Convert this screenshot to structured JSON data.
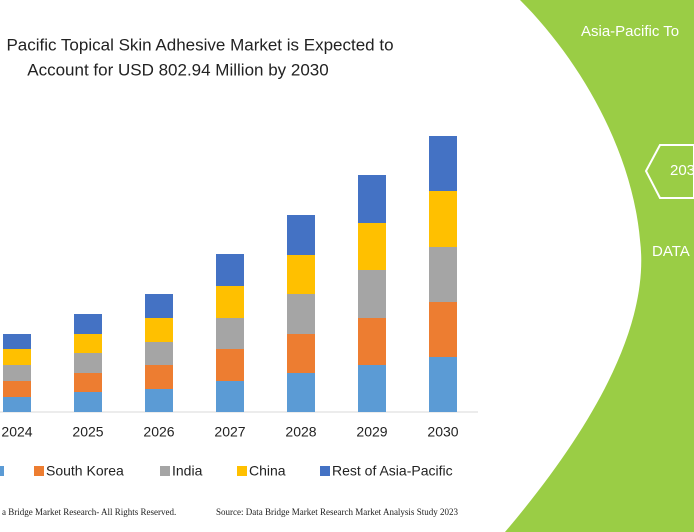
{
  "chart_data": {
    "type": "stacked-bar",
    "title_lines": [
      "Pacific Topical Skin Adhesive Market is Expected to",
      "Account for USD 802.94 Million by 2030"
    ],
    "categories": [
      "2024",
      "2025",
      "2026",
      "2027",
      "2028",
      "2029",
      "2030"
    ],
    "series": [
      {
        "color": "#5b9bd5",
        "values": [
          15,
          20,
          23,
          31,
          39,
          47,
          55
        ]
      },
      {
        "name": "South Korea",
        "color": "#ed7d31",
        "values": [
          16,
          19,
          24,
          32,
          39,
          47,
          55
        ]
      },
      {
        "name": "India",
        "color": "#a5a5a5",
        "values": [
          16,
          20,
          23,
          31,
          40,
          48,
          55
        ]
      },
      {
        "name": "China",
        "color": "#ffc000",
        "values": [
          16,
          19,
          24,
          32,
          39,
          47,
          56
        ]
      },
      {
        "name": "Rest of Asia-Pacific",
        "color": "#4472c4",
        "values": [
          15,
          20,
          24,
          32,
          40,
          48,
          55
        ]
      }
    ],
    "footer_left": "a Bridge Market Research-  All Rights Reserved.",
    "footer_right": "Source: Data Bridge Market Research  Market Analysis Study 2023"
  },
  "side_panel": {
    "heading": "Asia-Pacific To",
    "badge": "203",
    "label": "DATA"
  }
}
